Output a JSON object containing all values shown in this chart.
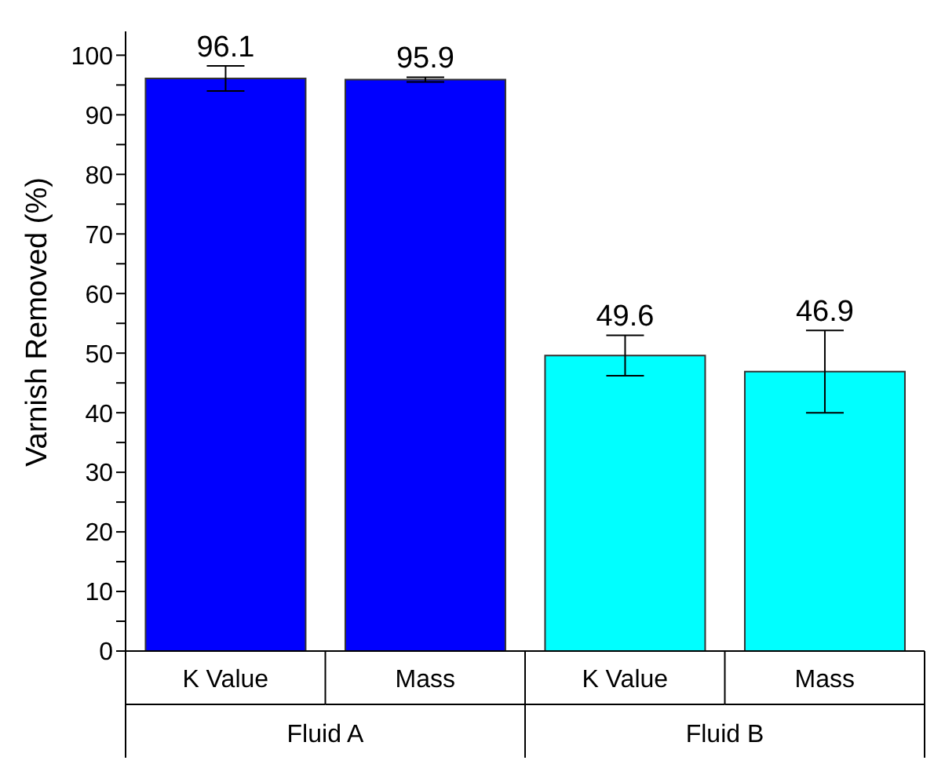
{
  "chart_data": {
    "type": "bar",
    "ylabel": "Varnish Removed (%)",
    "categories": [
      "K Value",
      "Mass",
      "K Value",
      "Mass"
    ],
    "values": [
      96.1,
      95.9,
      49.6,
      46.9
    ],
    "errors": [
      2.1,
      0.4,
      3.4,
      6.9
    ],
    "colors": [
      "#0000ff",
      "#0000ff",
      "#00ffff",
      "#00ffff"
    ],
    "data_labels": true,
    "annotations": [
      "Fluid A",
      "Fluid B"
    ],
    "ylim": [
      0,
      104
    ],
    "yticks": [
      0,
      {
        "value": 5,
        "label": null
      },
      10,
      {
        "value": 15,
        "label": null
      },
      20,
      {
        "value": 25,
        "label": null
      },
      30,
      {
        "value": 35,
        "label": null
      },
      40,
      {
        "value": 45,
        "label": null
      },
      50,
      {
        "value": 55,
        "label": null
      },
      60,
      {
        "value": 65,
        "label": null
      },
      70,
      {
        "value": 75,
        "label": null
      },
      80,
      {
        "value": 85,
        "label": null
      },
      90,
      {
        "value": 95,
        "label": null
      },
      100
    ],
    "grid": false,
    "legend": false
  }
}
